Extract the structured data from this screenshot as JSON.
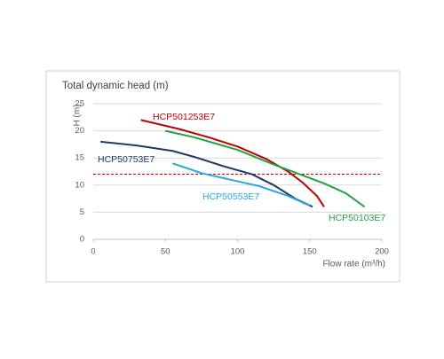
{
  "chart_data": {
    "type": "line",
    "title": "Total dynamic head (m)",
    "y_label": "H (m)",
    "x_label": "Flow rate (m³/h)",
    "xlim": [
      0,
      200
    ],
    "xticks": [
      0,
      50,
      100,
      150,
      200
    ],
    "ylim": [
      0,
      25
    ],
    "yticks": [
      0,
      5,
      10,
      15,
      20,
      25
    ],
    "grid": true,
    "hline": {
      "value": 12,
      "color": "#c00000"
    },
    "series": [
      {
        "name": "HCP501253E7",
        "color": "#c00000",
        "x": [
          33,
          60,
          80,
          100,
          120,
          135,
          145,
          155,
          160
        ],
        "values": [
          22,
          20.3,
          18.8,
          17.1,
          14.8,
          12.5,
          10.5,
          8,
          6
        ]
      },
      {
        "name": "HCP50753E7",
        "color": "#1f3864",
        "x": [
          5,
          30,
          55,
          70,
          90,
          110,
          125,
          140,
          152
        ],
        "values": [
          18,
          17.3,
          16.3,
          15.2,
          13.5,
          12,
          10,
          7.5,
          6
        ]
      },
      {
        "name": "HCP50553E7",
        "color": "#2aa6e0",
        "x": [
          55,
          75,
          95,
          115,
          135,
          150
        ],
        "values": [
          14,
          12.2,
          11,
          9.8,
          8,
          6.2
        ]
      },
      {
        "name": "HCP50103E7",
        "color": "#22a045",
        "x": [
          50,
          70,
          100,
          125,
          140,
          160,
          175,
          188
        ],
        "values": [
          20,
          18.8,
          16.5,
          13.8,
          12.3,
          10.3,
          8.5,
          6
        ]
      }
    ]
  }
}
